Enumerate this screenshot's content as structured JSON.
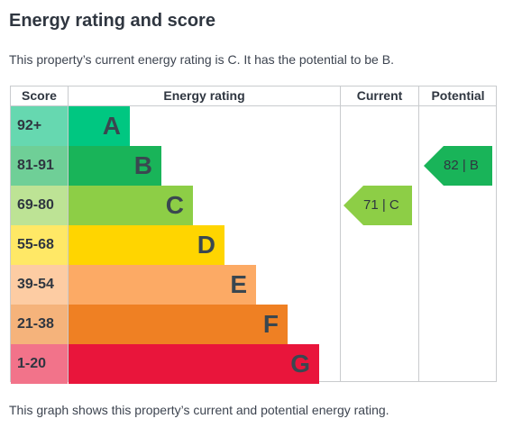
{
  "heading": "Energy rating and score",
  "intro": "This property’s current energy rating is C. It has the potential to be B.",
  "footer": "This graph shows this property’s current and potential energy rating.",
  "columns": {
    "score": "Score",
    "rating": "Energy rating",
    "current": "Current",
    "potential": "Potential"
  },
  "bands": [
    {
      "score": "92+",
      "letter": "A",
      "color": "#00c781",
      "tint": "#66d8b0"
    },
    {
      "score": "81-91",
      "letter": "B",
      "color": "#19b459",
      "tint": "#6fcf97"
    },
    {
      "score": "69-80",
      "letter": "C",
      "color": "#8dce46",
      "tint": "#bde395"
    },
    {
      "score": "55-68",
      "letter": "D",
      "color": "#ffd500",
      "tint": "#ffe866"
    },
    {
      "score": "39-54",
      "letter": "E",
      "color": "#fcaa65",
      "tint": "#fdcca3"
    },
    {
      "score": "21-38",
      "letter": "F",
      "color": "#ef8023",
      "tint": "#f5b37b"
    },
    {
      "score": "1-20",
      "letter": "G",
      "color": "#e9153b",
      "tint": "#f2738a"
    }
  ],
  "current": {
    "label": "71 | C",
    "score": 71,
    "band": "C",
    "color": "#8dce46"
  },
  "potential": {
    "label": "82 | B",
    "score": 82,
    "band": "B",
    "color": "#19b459"
  }
}
